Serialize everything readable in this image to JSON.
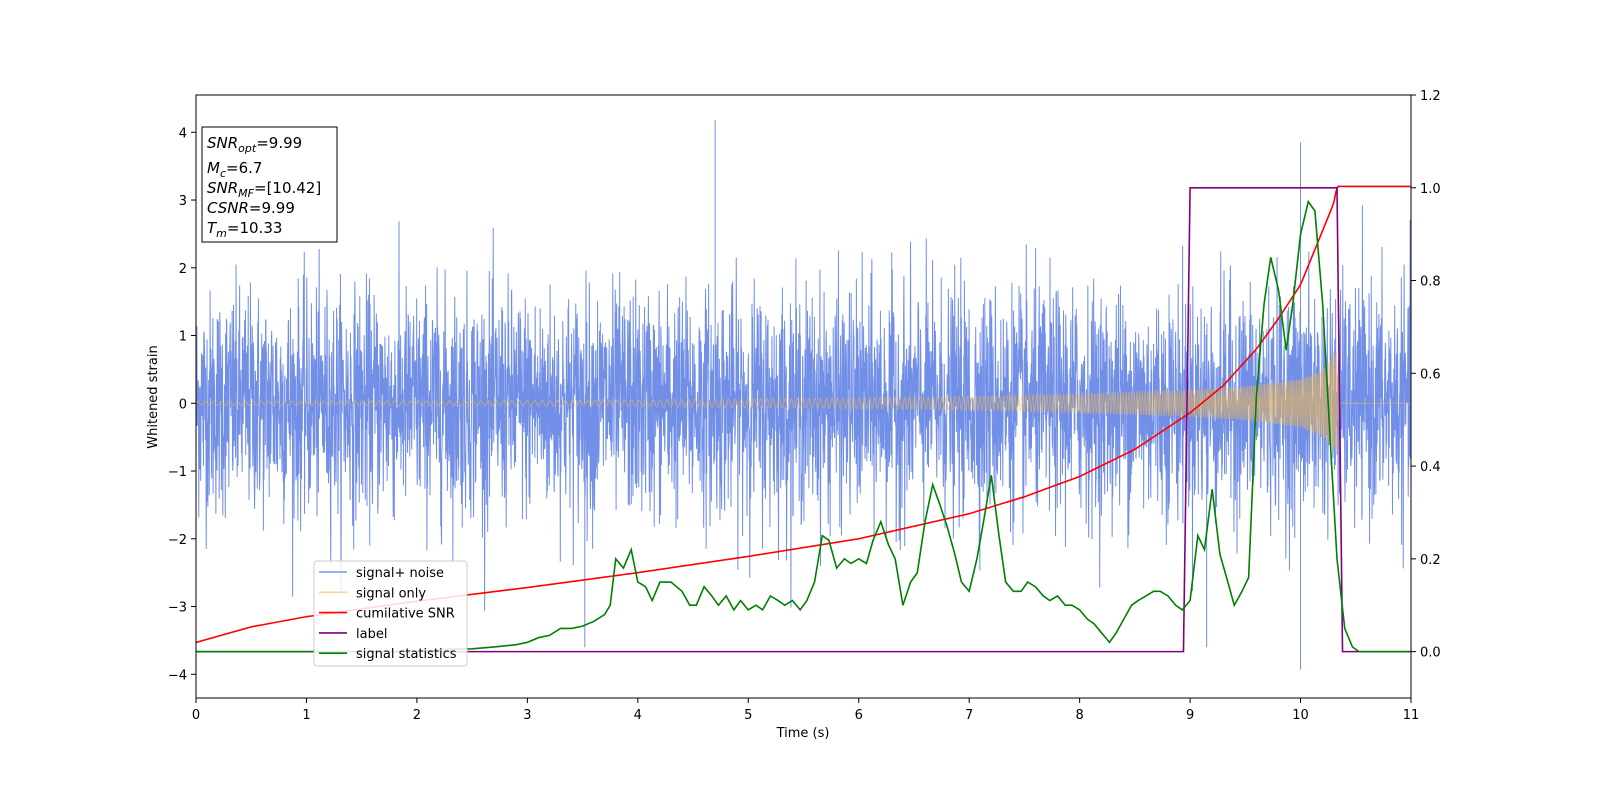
{
  "chart_data": {
    "type": "line",
    "xlabel": "Time (s)",
    "ylabel": "Whitened strain",
    "xlim": [
      0,
      11
    ],
    "ylim": [
      -4.35,
      4.55
    ],
    "y2lim": [
      -0.1,
      1.2
    ],
    "x_ticks": [
      "0",
      "1",
      "2",
      "3",
      "4",
      "5",
      "6",
      "7",
      "8",
      "9",
      "10",
      "11"
    ],
    "y_ticks": [
      "−4",
      "−3",
      "−2",
      "−1",
      "0",
      "1",
      "2",
      "3",
      "4"
    ],
    "y2_ticks": [
      "0.0",
      "0.2",
      "0.4",
      "0.6",
      "0.8",
      "1.0",
      "1.2"
    ],
    "legend_position": "lower-left",
    "grid": false,
    "info_box": [
      {
        "main": "SNR",
        "sub": "opt",
        "value": "=9.99"
      },
      {
        "main": "M",
        "sub": "c",
        "value": "=6.7"
      },
      {
        "main": "SNR",
        "sub": "MF",
        "value": "=[10.42]"
      },
      {
        "main": "CSNR",
        "sub": "",
        "value": "=9.99"
      },
      {
        "main": "T",
        "sub": "m",
        "value": "=10.33"
      }
    ],
    "series": [
      {
        "name": "signal+ noise",
        "color": "#6a89e6",
        "axis": "left",
        "noise_std": 0.82,
        "envelope_min": [
          -2.1,
          -2.6
        ],
        "envelope_max": [
          2.4,
          3.6
        ],
        "spikes": [
          {
            "x": 4.7,
            "y": 4.18
          },
          {
            "x": 10.0,
            "y": 3.85
          },
          {
            "x": 10.0,
            "y": -3.93
          },
          {
            "x": 9.15,
            "y": -3.6
          },
          {
            "x": 3.52,
            "y": -3.6
          }
        ]
      },
      {
        "name": "signal only",
        "color": "#f5b94a",
        "axis": "left",
        "amplitude": [
          [
            0,
            0.03
          ],
          [
            2,
            0.035
          ],
          [
            4,
            0.05
          ],
          [
            6,
            0.08
          ],
          [
            7,
            0.1
          ],
          [
            8,
            0.14
          ],
          [
            9,
            0.2
          ],
          [
            9.5,
            0.25
          ],
          [
            10,
            0.36
          ],
          [
            10.2,
            0.5
          ],
          [
            10.33,
            0.78
          ],
          [
            10.35,
            0.0
          ],
          [
            11,
            0.0
          ]
        ]
      },
      {
        "name": "cumilative SNR",
        "color": "#ff0000",
        "axis": "left",
        "x": [
          0,
          0.5,
          1,
          2,
          3,
          4,
          5,
          6,
          7,
          7.5,
          8,
          8.5,
          9,
          9.3,
          9.6,
          9.8,
          10,
          10.1,
          10.2,
          10.3,
          10.33,
          11
        ],
        "values": [
          -3.53,
          -3.3,
          -3.15,
          -2.92,
          -2.72,
          -2.5,
          -2.26,
          -2.0,
          -1.63,
          -1.38,
          -1.08,
          -0.68,
          -0.14,
          0.26,
          0.8,
          1.25,
          1.75,
          2.15,
          2.55,
          2.95,
          3.2,
          3.2
        ]
      },
      {
        "name": "label",
        "color": "#800080",
        "axis": "right",
        "x": [
          0,
          8.94,
          9.0,
          10.33,
          10.38,
          11
        ],
        "values": [
          0,
          0,
          1,
          1,
          0,
          0
        ]
      },
      {
        "name": "signal statistics",
        "color": "#008000",
        "axis": "right",
        "x": [
          0,
          1.0,
          2.0,
          2.3,
          2.5,
          2.7,
          2.9,
          3.0,
          3.1,
          3.2,
          3.3,
          3.4,
          3.5,
          3.6,
          3.7,
          3.75,
          3.8,
          3.87,
          3.94,
          4.0,
          4.07,
          4.13,
          4.2,
          4.3,
          4.4,
          4.47,
          4.53,
          4.6,
          4.67,
          4.73,
          4.8,
          4.87,
          4.93,
          5.0,
          5.07,
          5.13,
          5.2,
          5.27,
          5.33,
          5.4,
          5.47,
          5.53,
          5.6,
          5.67,
          5.73,
          5.8,
          5.87,
          5.93,
          6.0,
          6.07,
          6.13,
          6.2,
          6.27,
          6.33,
          6.4,
          6.47,
          6.53,
          6.6,
          6.67,
          6.73,
          6.8,
          6.87,
          6.93,
          7.0,
          7.07,
          7.13,
          7.2,
          7.27,
          7.33,
          7.4,
          7.47,
          7.53,
          7.6,
          7.67,
          7.73,
          7.8,
          7.87,
          7.93,
          8.0,
          8.07,
          8.13,
          8.2,
          8.27,
          8.33,
          8.4,
          8.47,
          8.53,
          8.6,
          8.67,
          8.73,
          8.8,
          8.87,
          8.93,
          9.0,
          9.07,
          9.13,
          9.2,
          9.27,
          9.33,
          9.4,
          9.47,
          9.53,
          9.6,
          9.67,
          9.73,
          9.8,
          9.87,
          9.93,
          10.0,
          10.07,
          10.13,
          10.2,
          10.27,
          10.33,
          10.4,
          10.47,
          10.53,
          10.6,
          11.0
        ],
        "values": [
          0.0,
          0.0,
          0.0,
          0.005,
          0.006,
          0.01,
          0.015,
          0.02,
          0.03,
          0.035,
          0.05,
          0.05,
          0.055,
          0.065,
          0.08,
          0.1,
          0.2,
          0.18,
          0.22,
          0.15,
          0.14,
          0.11,
          0.15,
          0.15,
          0.13,
          0.1,
          0.1,
          0.14,
          0.12,
          0.1,
          0.12,
          0.09,
          0.11,
          0.09,
          0.1,
          0.09,
          0.12,
          0.11,
          0.1,
          0.11,
          0.09,
          0.11,
          0.15,
          0.25,
          0.24,
          0.18,
          0.2,
          0.19,
          0.2,
          0.19,
          0.24,
          0.28,
          0.23,
          0.2,
          0.1,
          0.15,
          0.17,
          0.28,
          0.36,
          0.32,
          0.27,
          0.21,
          0.15,
          0.13,
          0.2,
          0.28,
          0.38,
          0.25,
          0.15,
          0.13,
          0.13,
          0.15,
          0.14,
          0.12,
          0.11,
          0.12,
          0.1,
          0.1,
          0.09,
          0.07,
          0.06,
          0.04,
          0.02,
          0.04,
          0.07,
          0.1,
          0.11,
          0.12,
          0.13,
          0.13,
          0.12,
          0.1,
          0.09,
          0.11,
          0.25,
          0.22,
          0.35,
          0.21,
          0.16,
          0.1,
          0.13,
          0.16,
          0.55,
          0.75,
          0.85,
          0.78,
          0.65,
          0.75,
          0.9,
          0.97,
          0.95,
          0.75,
          0.45,
          0.2,
          0.05,
          0.01,
          0.0,
          0.0,
          0.0
        ]
      }
    ]
  }
}
